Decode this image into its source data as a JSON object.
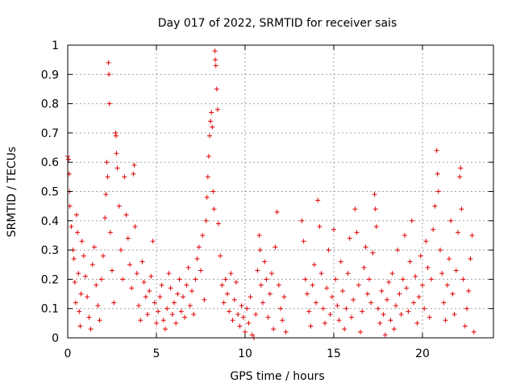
{
  "chart_data": {
    "type": "scatter",
    "title": "Day 017 of 2022, SRMTID for receiver sais",
    "xlabel": "GPS time / hours",
    "ylabel": "SRMTID / TECUs",
    "xlim": [
      0,
      24
    ],
    "ylim": [
      0,
      1
    ],
    "xticks": [
      0,
      5,
      10,
      15,
      20
    ],
    "xtick_labels": [
      "0",
      "5",
      "10",
      "15",
      "20"
    ],
    "yticks": [
      0,
      0.1,
      0.2,
      0.3,
      0.4,
      0.5,
      0.6,
      0.7,
      0.8,
      0.9,
      1
    ],
    "ytick_labels": [
      "0",
      "0.1",
      "0.2",
      "0.3",
      "0.4",
      "0.5",
      "0.6",
      "0.7",
      "0.8",
      "0.9",
      "1"
    ],
    "grid": true,
    "marker": "+",
    "color": "#e00000",
    "series": [
      {
        "name": "SRMTID",
        "points": [
          [
            0.0,
            0.62
          ],
          [
            0.05,
            0.61
          ],
          [
            0.08,
            0.56
          ],
          [
            0.1,
            0.5
          ],
          [
            0.12,
            0.45
          ],
          [
            0.2,
            0.38
          ],
          [
            0.3,
            0.3
          ],
          [
            0.35,
            0.27
          ],
          [
            0.4,
            0.19
          ],
          [
            0.45,
            0.12
          ],
          [
            0.5,
            0.42
          ],
          [
            0.55,
            0.36
          ],
          [
            0.6,
            0.22
          ],
          [
            0.65,
            0.09
          ],
          [
            0.7,
            0.04
          ],
          [
            0.75,
            0.15
          ],
          [
            0.8,
            0.33
          ],
          [
            0.9,
            0.28
          ],
          [
            1.0,
            0.21
          ],
          [
            1.1,
            0.14
          ],
          [
            1.2,
            0.07
          ],
          [
            1.3,
            0.03
          ],
          [
            1.4,
            0.25
          ],
          [
            1.5,
            0.31
          ],
          [
            1.6,
            0.18
          ],
          [
            1.7,
            0.11
          ],
          [
            1.8,
            0.06
          ],
          [
            1.9,
            0.2
          ],
          [
            2.0,
            0.28
          ],
          [
            2.1,
            0.41
          ],
          [
            2.15,
            0.49
          ],
          [
            2.2,
            0.6
          ],
          [
            2.25,
            0.55
          ],
          [
            2.3,
            0.94
          ],
          [
            2.32,
            0.9
          ],
          [
            2.35,
            0.8
          ],
          [
            2.4,
            0.36
          ],
          [
            2.5,
            0.23
          ],
          [
            2.6,
            0.12
          ],
          [
            2.7,
            0.7
          ],
          [
            2.72,
            0.69
          ],
          [
            2.75,
            0.63
          ],
          [
            2.8,
            0.58
          ],
          [
            2.9,
            0.45
          ],
          [
            3.0,
            0.3
          ],
          [
            3.1,
            0.2
          ],
          [
            3.2,
            0.55
          ],
          [
            3.3,
            0.42
          ],
          [
            3.4,
            0.34
          ],
          [
            3.5,
            0.25
          ],
          [
            3.6,
            0.17
          ],
          [
            3.7,
            0.56
          ],
          [
            3.75,
            0.59
          ],
          [
            3.8,
            0.38
          ],
          [
            3.9,
            0.22
          ],
          [
            4.0,
            0.11
          ],
          [
            4.1,
            0.06
          ],
          [
            4.2,
            0.26
          ],
          [
            4.3,
            0.19
          ],
          [
            4.4,
            0.14
          ],
          [
            4.5,
            0.08
          ],
          [
            4.6,
            0.16
          ],
          [
            4.7,
            0.21
          ],
          [
            4.8,
            0.33
          ],
          [
            4.9,
            0.12
          ],
          [
            5.0,
            0.05
          ],
          [
            5.1,
            0.09
          ],
          [
            5.2,
            0.14
          ],
          [
            5.3,
            0.18
          ],
          [
            5.4,
            0.06
          ],
          [
            5.5,
            0.03
          ],
          [
            5.6,
            0.1
          ],
          [
            5.7,
            0.22
          ],
          [
            5.8,
            0.17
          ],
          [
            5.9,
            0.08
          ],
          [
            6.0,
            0.12
          ],
          [
            6.1,
            0.05
          ],
          [
            6.2,
            0.15
          ],
          [
            6.3,
            0.2
          ],
          [
            6.4,
            0.09
          ],
          [
            6.5,
            0.14
          ],
          [
            6.6,
            0.07
          ],
          [
            6.7,
            0.18
          ],
          [
            6.8,
            0.24
          ],
          [
            6.9,
            0.11
          ],
          [
            7.0,
            0.16
          ],
          [
            7.1,
            0.08
          ],
          [
            7.2,
            0.2
          ],
          [
            7.3,
            0.27
          ],
          [
            7.4,
            0.31
          ],
          [
            7.5,
            0.23
          ],
          [
            7.6,
            0.35
          ],
          [
            7.7,
            0.13
          ],
          [
            7.8,
            0.4
          ],
          [
            7.85,
            0.48
          ],
          [
            7.9,
            0.55
          ],
          [
            7.95,
            0.62
          ],
          [
            8.0,
            0.69
          ],
          [
            8.05,
            0.74
          ],
          [
            8.1,
            0.77
          ],
          [
            8.15,
            0.72
          ],
          [
            8.2,
            0.5
          ],
          [
            8.25,
            0.44
          ],
          [
            8.3,
            0.98
          ],
          [
            8.32,
            0.95
          ],
          [
            8.35,
            0.93
          ],
          [
            8.4,
            0.85
          ],
          [
            8.45,
            0.78
          ],
          [
            8.5,
            0.39
          ],
          [
            8.6,
            0.28
          ],
          [
            8.7,
            0.18
          ],
          [
            8.8,
            0.12
          ],
          [
            8.9,
            0.2
          ],
          [
            9.0,
            0.15
          ],
          [
            9.1,
            0.09
          ],
          [
            9.2,
            0.22
          ],
          [
            9.3,
            0.06
          ],
          [
            9.4,
            0.13
          ],
          [
            9.5,
            0.19
          ],
          [
            9.6,
            0.08
          ],
          [
            9.7,
            0.04
          ],
          [
            9.8,
            0.11
          ],
          [
            9.9,
            0.07
          ],
          [
            10.0,
            0.02
          ],
          [
            10.1,
            0.1
          ],
          [
            10.2,
            0.05
          ],
          [
            10.3,
            0.14
          ],
          [
            10.4,
            0.01
          ],
          [
            10.5,
            0.0
          ],
          [
            10.6,
            0.08
          ],
          [
            10.7,
            0.23
          ],
          [
            10.8,
            0.35
          ],
          [
            10.85,
            0.3
          ],
          [
            10.9,
            0.18
          ],
          [
            11.0,
            0.12
          ],
          [
            11.1,
            0.26
          ],
          [
            11.2,
            0.2
          ],
          [
            11.3,
            0.07
          ],
          [
            11.4,
            0.15
          ],
          [
            11.5,
            0.22
          ],
          [
            11.6,
            0.03
          ],
          [
            11.7,
            0.31
          ],
          [
            11.8,
            0.43
          ],
          [
            11.9,
            0.18
          ],
          [
            12.0,
            0.1
          ],
          [
            12.1,
            0.06
          ],
          [
            12.2,
            0.14
          ],
          [
            12.3,
            0.02
          ],
          [
            13.2,
            0.4
          ],
          [
            13.3,
            0.33
          ],
          [
            13.4,
            0.2
          ],
          [
            13.5,
            0.15
          ],
          [
            13.6,
            0.09
          ],
          [
            13.7,
            0.04
          ],
          [
            13.8,
            0.18
          ],
          [
            13.9,
            0.25
          ],
          [
            14.0,
            0.12
          ],
          [
            14.1,
            0.47
          ],
          [
            14.2,
            0.38
          ],
          [
            14.3,
            0.22
          ],
          [
            14.4,
            0.1
          ],
          [
            14.5,
            0.05
          ],
          [
            14.6,
            0.17
          ],
          [
            14.7,
            0.3
          ],
          [
            14.8,
            0.08
          ],
          [
            14.9,
            0.14
          ],
          [
            15.0,
            0.37
          ],
          [
            15.1,
            0.2
          ],
          [
            15.2,
            0.11
          ],
          [
            15.3,
            0.06
          ],
          [
            15.4,
            0.26
          ],
          [
            15.5,
            0.16
          ],
          [
            15.6,
            0.03
          ],
          [
            15.7,
            0.1
          ],
          [
            15.8,
            0.22
          ],
          [
            15.9,
            0.34
          ],
          [
            16.0,
            0.07
          ],
          [
            16.1,
            0.13
          ],
          [
            16.2,
            0.44
          ],
          [
            16.3,
            0.36
          ],
          [
            16.4,
            0.18
          ],
          [
            16.5,
            0.02
          ],
          [
            16.6,
            0.09
          ],
          [
            16.7,
            0.24
          ],
          [
            16.8,
            0.31
          ],
          [
            16.9,
            0.15
          ],
          [
            17.0,
            0.2
          ],
          [
            17.1,
            0.12
          ],
          [
            17.2,
            0.29
          ],
          [
            17.3,
            0.49
          ],
          [
            17.35,
            0.44
          ],
          [
            17.4,
            0.38
          ],
          [
            17.5,
            0.1
          ],
          [
            17.6,
            0.05
          ],
          [
            17.7,
            0.16
          ],
          [
            17.8,
            0.08
          ],
          [
            17.9,
            0.01
          ],
          [
            18.0,
            0.13
          ],
          [
            18.1,
            0.19
          ],
          [
            18.2,
            0.06
          ],
          [
            18.3,
            0.22
          ],
          [
            18.4,
            0.03
          ],
          [
            18.5,
            0.11
          ],
          [
            18.6,
            0.3
          ],
          [
            18.7,
            0.15
          ],
          [
            18.8,
            0.08
          ],
          [
            18.9,
            0.2
          ],
          [
            19.0,
            0.35
          ],
          [
            19.1,
            0.17
          ],
          [
            19.2,
            0.09
          ],
          [
            19.3,
            0.26
          ],
          [
            19.4,
            0.4
          ],
          [
            19.5,
            0.12
          ],
          [
            19.6,
            0.21
          ],
          [
            19.7,
            0.05
          ],
          [
            19.8,
            0.14
          ],
          [
            19.9,
            0.28
          ],
          [
            20.0,
            0.18
          ],
          [
            20.1,
            0.1
          ],
          [
            20.2,
            0.33
          ],
          [
            20.3,
            0.24
          ],
          [
            20.4,
            0.07
          ],
          [
            20.5,
            0.2
          ],
          [
            20.6,
            0.37
          ],
          [
            20.7,
            0.45
          ],
          [
            20.8,
            0.64
          ],
          [
            20.85,
            0.56
          ],
          [
            20.9,
            0.5
          ],
          [
            21.0,
            0.3
          ],
          [
            21.1,
            0.22
          ],
          [
            21.2,
            0.12
          ],
          [
            21.3,
            0.06
          ],
          [
            21.4,
            0.18
          ],
          [
            21.5,
            0.27
          ],
          [
            21.6,
            0.4
          ],
          [
            21.7,
            0.15
          ],
          [
            21.8,
            0.08
          ],
          [
            21.9,
            0.23
          ],
          [
            22.0,
            0.36
          ],
          [
            22.1,
            0.55
          ],
          [
            22.15,
            0.58
          ],
          [
            22.2,
            0.44
          ],
          [
            22.3,
            0.2
          ],
          [
            22.4,
            0.04
          ],
          [
            22.5,
            0.1
          ],
          [
            22.6,
            0.16
          ],
          [
            22.7,
            0.27
          ],
          [
            22.8,
            0.35
          ],
          [
            22.9,
            0.02
          ]
        ]
      }
    ]
  }
}
